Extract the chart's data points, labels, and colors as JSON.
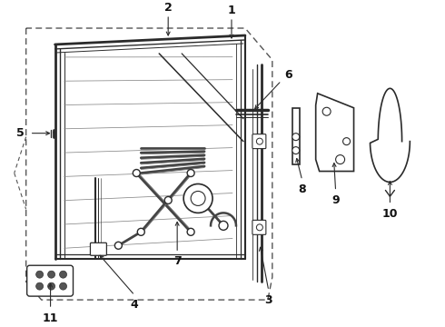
{
  "bg_color": "#ffffff",
  "line_color": "#2a2a2a",
  "label_color": "#111111",
  "dashed_color": "#555555"
}
